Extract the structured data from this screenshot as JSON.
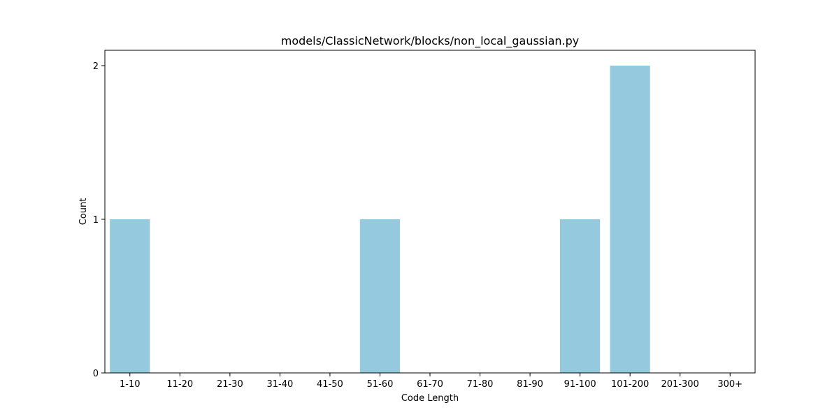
{
  "chart_data": {
    "type": "bar",
    "title": "models/ClassicNetwork/blocks/non_local_gaussian.py",
    "xlabel": "Code Length",
    "ylabel": "Count",
    "categories": [
      "1-10",
      "11-20",
      "21-30",
      "31-40",
      "41-50",
      "51-60",
      "61-70",
      "71-80",
      "81-90",
      "91-100",
      "101-200",
      "201-300",
      "300+"
    ],
    "values": [
      1,
      0,
      0,
      0,
      0,
      1,
      0,
      0,
      0,
      1,
      2,
      0,
      0
    ],
    "ylim": [
      0,
      2.1
    ],
    "yticks": [
      0,
      1,
      2
    ],
    "grid": false,
    "bar_color": "#95c9de"
  }
}
